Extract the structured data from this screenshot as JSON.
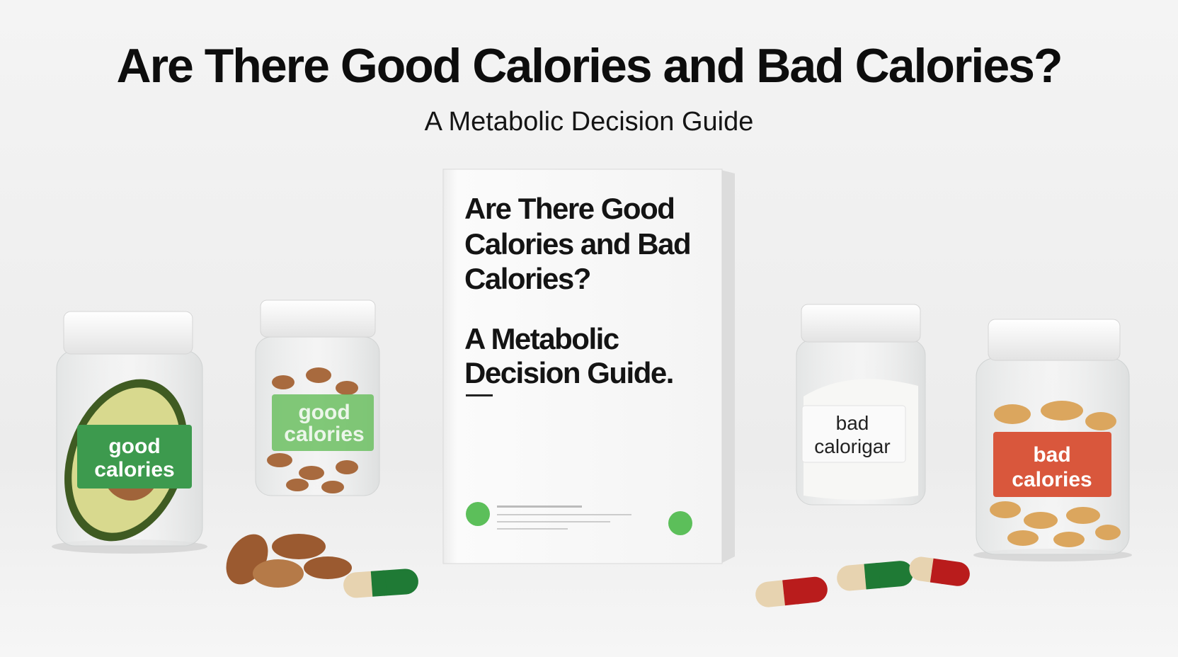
{
  "header": {
    "title": "Are There Good Calories and Bad Calories?",
    "subtitle": "A Metabolic Decision Guide"
  },
  "book": {
    "title_lines": [
      "Are There Good",
      "Calories and Bad",
      "Calories?"
    ],
    "subtitle_lines": [
      "A Metabolic",
      "Decision Guide."
    ]
  },
  "jars": [
    {
      "label_lines": [
        "good",
        "calories"
      ]
    },
    {
      "label_lines": [
        "good",
        "calories"
      ]
    },
    {
      "label_lines": [
        "bad",
        "calorigar"
      ]
    },
    {
      "label_lines": [
        "bad",
        "calories"
      ]
    }
  ]
}
